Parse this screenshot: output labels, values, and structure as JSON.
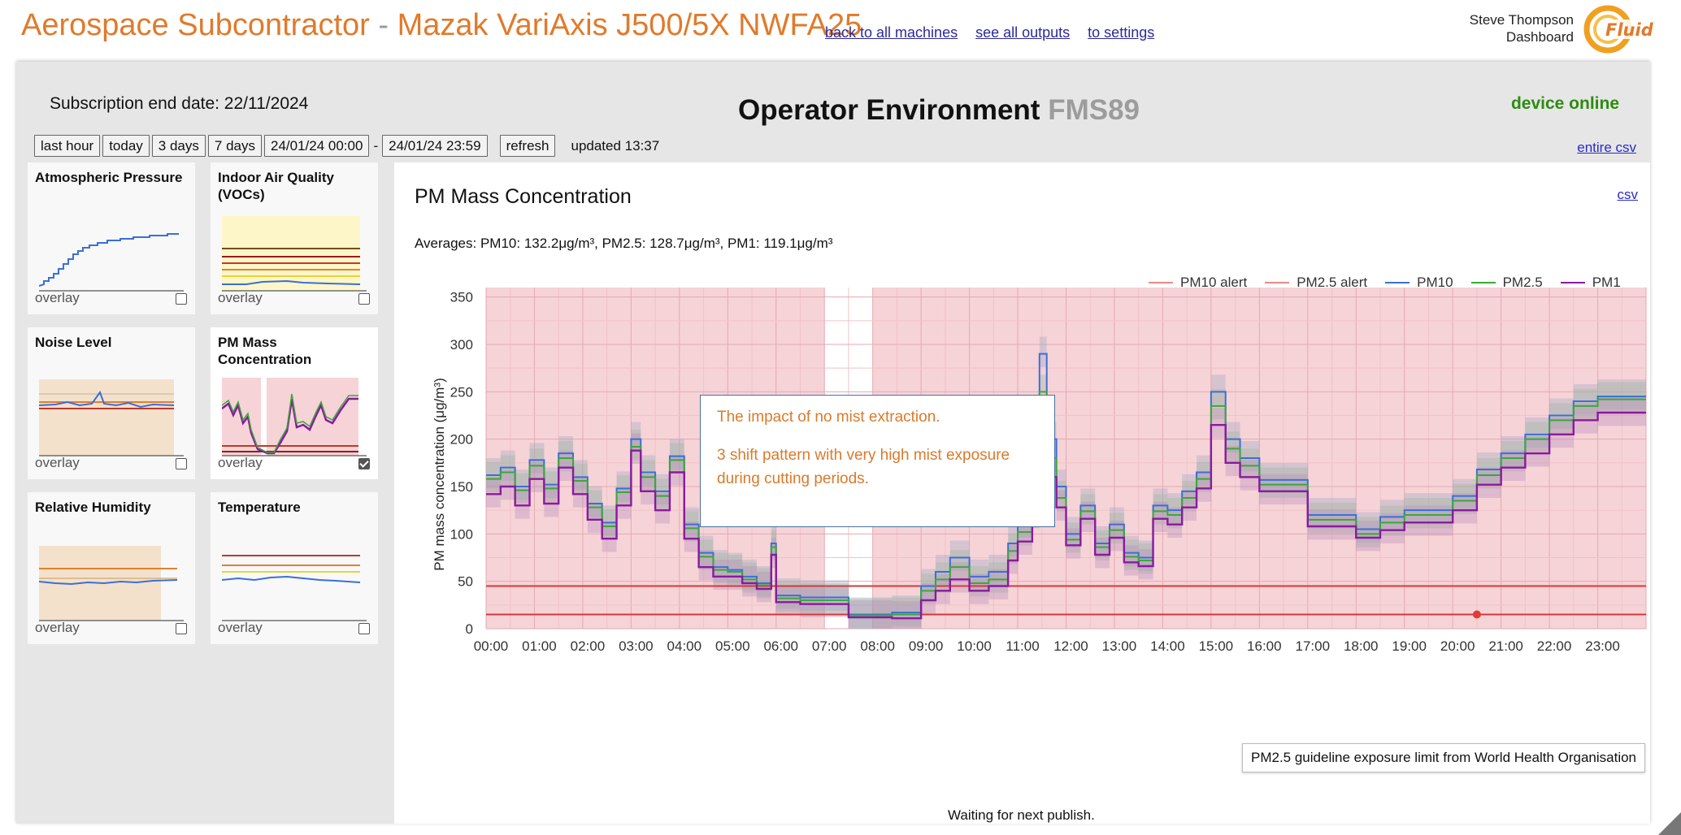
{
  "header": {
    "title_part1": "Aerospace Subcontractor",
    "title_sep": " - ",
    "title_part2": "Mazak VariAxis J500/5X NWFA25",
    "links": [
      "back to all machines",
      "see all outputs",
      "to settings"
    ],
    "user_name": "Steve Thompson",
    "user_role": "Dashboard",
    "logo_text": "Fluid"
  },
  "status": {
    "subscription": "Subscription end date: 22/11/2024",
    "title": "Operator Environment",
    "device_code": "FMS89",
    "device_state": "device online",
    "entire_csv": "entire csv"
  },
  "controls": {
    "buttons": [
      "last hour",
      "today",
      "3 days",
      "7 days"
    ],
    "from": "24/01/24 00:00",
    "dash": "-",
    "to": "24/01/24 23:59",
    "refresh": "refresh",
    "updated": "updated 13:37"
  },
  "tiles": [
    {
      "title": "Atmospheric Pressure",
      "overlay": "overlay",
      "checked": false
    },
    {
      "title": "Indoor Air Quality (VOCs)",
      "overlay": "overlay",
      "checked": false
    },
    {
      "title": "Noise Level",
      "overlay": "overlay",
      "checked": false
    },
    {
      "title": "PM Mass Concentration",
      "overlay": "overlay",
      "checked": true
    },
    {
      "title": "Relative Humidity",
      "overlay": "overlay",
      "checked": false
    },
    {
      "title": "Temperature",
      "overlay": "overlay",
      "checked": false
    }
  ],
  "panel": {
    "title": "PM Mass Concentration",
    "csv": "csv",
    "averages": "Averages: PM10: 132.2μg/m³, PM2.5: 128.7μg/m³, PM1: 119.1μg/m³",
    "annotation_line1": "The impact of no mist extraction.",
    "annotation_line2": "3 shift pattern with very high mist exposure during cutting periods.",
    "tooltip": "PM2.5 guideline exposure limit from World Health Organisation",
    "waiting": "Waiting for next publish."
  },
  "colors": {
    "brand_orange": "#e07a2b",
    "online_green": "#2e8b12",
    "pm10": "#3a6fd8",
    "pm25": "#3aa83a",
    "pm1": "#8a1a9e",
    "alert_line": "#d43a3a",
    "alert_band": "#f6d3d7"
  },
  "chart_data": {
    "type": "line",
    "ylabel": "PM mass concentration (μg/m³)",
    "ylim": [
      0,
      360
    ],
    "yticks": [
      0,
      50,
      100,
      150,
      200,
      250,
      300,
      350
    ],
    "xticks": [
      "00:00",
      "01:00",
      "02:00",
      "03:00",
      "04:00",
      "05:00",
      "06:00",
      "07:00",
      "08:00",
      "09:00",
      "10:00",
      "11:00",
      "12:00",
      "13:00",
      "14:00",
      "15:00",
      "16:00",
      "17:00",
      "18:00",
      "19:00",
      "20:00",
      "21:00",
      "22:00",
      "23:00"
    ],
    "xlim": [
      0,
      24
    ],
    "legend": [
      "PM10 alert",
      "PM2.5 alert",
      "PM10",
      "PM2.5",
      "PM1"
    ],
    "legend_colors": [
      "#e58a8a",
      "#e58a8a",
      "#3a6fd8",
      "#3aa83a",
      "#8a1a9e"
    ],
    "alert_lines": [
      {
        "name": "PM10 alert",
        "value": 45
      },
      {
        "name": "PM2.5 alert",
        "value": 15
      }
    ],
    "no_alert_window": [
      7.0,
      8.0
    ],
    "marker": {
      "x": 20.5,
      "y": 15
    },
    "series": [
      {
        "name": "PM10",
        "x": [
          0,
          0.3,
          0.6,
          0.9,
          1.2,
          1.5,
          1.8,
          2.1,
          2.4,
          2.7,
          3.0,
          3.2,
          3.5,
          3.8,
          4.1,
          4.4,
          4.7,
          5.0,
          5.3,
          5.6,
          5.9,
          6.0,
          6.5,
          7.0,
          7.5,
          8.0,
          8.4,
          8.8,
          9.0,
          9.3,
          9.6,
          10.0,
          10.4,
          10.8,
          11.0,
          11.3,
          11.45,
          11.6,
          11.8,
          12.0,
          12.3,
          12.6,
          12.9,
          13.2,
          13.5,
          13.8,
          14.1,
          14.4,
          14.7,
          15.0,
          15.3,
          15.6,
          16.0,
          16.5,
          17.0,
          17.5,
          18.0,
          18.5,
          19.0,
          19.5,
          20.0,
          20.5,
          21.0,
          21.5,
          22.0,
          22.5,
          23.0,
          24.0
        ],
        "y": [
          162,
          170,
          150,
          178,
          152,
          185,
          160,
          132,
          112,
          148,
          200,
          165,
          145,
          182,
          110,
          80,
          65,
          62,
          55,
          48,
          90,
          35,
          33,
          33,
          15,
          15,
          17,
          17,
          45,
          60,
          75,
          55,
          60,
          90,
          110,
          140,
          290,
          200,
          150,
          100,
          130,
          90,
          110,
          80,
          75,
          130,
          125,
          145,
          165,
          250,
          200,
          180,
          157,
          157,
          120,
          120,
          105,
          118,
          125,
          125,
          140,
          168,
          185,
          205,
          225,
          240,
          245,
          245
        ]
      },
      {
        "name": "PM2.5",
        "x": [
          0,
          0.3,
          0.6,
          0.9,
          1.2,
          1.5,
          1.8,
          2.1,
          2.4,
          2.7,
          3.0,
          3.2,
          3.5,
          3.8,
          4.1,
          4.4,
          4.7,
          5.0,
          5.3,
          5.6,
          5.9,
          6.0,
          6.5,
          7.0,
          7.5,
          8.0,
          8.4,
          8.8,
          9.0,
          9.3,
          9.6,
          10.0,
          10.4,
          10.8,
          11.0,
          11.3,
          11.45,
          11.6,
          11.8,
          12.0,
          12.3,
          12.6,
          12.9,
          13.2,
          13.5,
          13.8,
          14.1,
          14.4,
          14.7,
          15.0,
          15.3,
          15.6,
          16.0,
          16.5,
          17.0,
          17.5,
          18.0,
          18.5,
          19.0,
          19.5,
          20.0,
          20.5,
          21.0,
          21.5,
          22.0,
          22.5,
          23.0,
          24.0
        ],
        "y": [
          158,
          165,
          146,
          172,
          148,
          180,
          156,
          128,
          108,
          144,
          192,
          160,
          140,
          178,
          106,
          76,
          62,
          60,
          52,
          46,
          86,
          32,
          30,
          30,
          14,
          14,
          15,
          15,
          40,
          52,
          65,
          48,
          52,
          82,
          102,
          132,
          250,
          180,
          138,
          94,
          124,
          86,
          104,
          76,
          72,
          124,
          120,
          138,
          158,
          235,
          190,
          172,
          152,
          152,
          115,
          115,
          100,
          112,
          120,
          120,
          135,
          162,
          180,
          200,
          220,
          235,
          242,
          242
        ]
      },
      {
        "name": "PM1",
        "x": [
          0,
          0.3,
          0.6,
          0.9,
          1.2,
          1.5,
          1.8,
          2.1,
          2.4,
          2.7,
          3.0,
          3.2,
          3.5,
          3.8,
          4.1,
          4.4,
          4.7,
          5.0,
          5.3,
          5.6,
          5.9,
          6.0,
          6.5,
          7.0,
          7.5,
          8.0,
          8.4,
          8.8,
          9.0,
          9.3,
          9.6,
          10.0,
          10.4,
          10.8,
          11.0,
          11.3,
          11.45,
          11.6,
          11.8,
          12.0,
          12.3,
          12.6,
          12.9,
          13.2,
          13.5,
          13.8,
          14.1,
          14.4,
          14.7,
          15.0,
          15.3,
          15.6,
          16.0,
          16.5,
          17.0,
          17.5,
          18.0,
          18.5,
          19.0,
          19.5,
          20.0,
          20.5,
          21.0,
          21.5,
          22.0,
          22.5,
          23.0,
          24.0
        ],
        "y": [
          142,
          150,
          130,
          158,
          132,
          170,
          142,
          115,
          95,
          130,
          188,
          145,
          125,
          165,
          95,
          65,
          55,
          55,
          48,
          42,
          78,
          28,
          26,
          26,
          12,
          12,
          11,
          11,
          30,
          40,
          52,
          40,
          45,
          72,
          92,
          120,
          200,
          160,
          128,
          88,
          116,
          78,
          96,
          70,
          66,
          116,
          110,
          128,
          148,
          215,
          175,
          160,
          145,
          145,
          108,
          108,
          96,
          104,
          112,
          112,
          125,
          152,
          170,
          185,
          205,
          220,
          228,
          228
        ]
      }
    ]
  }
}
